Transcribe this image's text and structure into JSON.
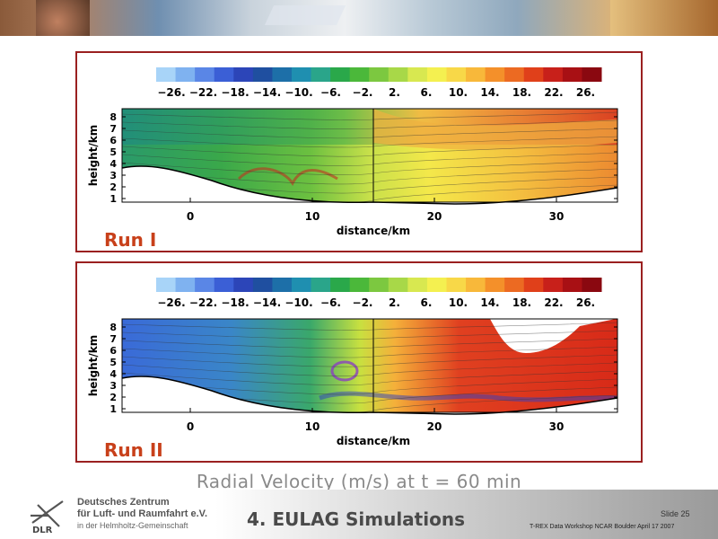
{
  "runs": [
    {
      "label": "Run I",
      "colorbar_ticks": [
        "−26.",
        "−22.",
        "−18.",
        "−14.",
        "−10.",
        "−6.",
        "−2.",
        "2.",
        "6.",
        "10.",
        "14.",
        "18.",
        "22.",
        "26."
      ],
      "xlabel": "distance/km",
      "ylabel": "height/km",
      "x_ticks": [
        "0",
        "10",
        "20",
        "30"
      ],
      "y_ticks": [
        "1",
        "2",
        "3",
        "4",
        "5",
        "6",
        "7",
        "8"
      ]
    },
    {
      "label": "Run II",
      "colorbar_ticks": [
        "−26.",
        "−22.",
        "−18.",
        "−14.",
        "−10.",
        "−6.",
        "−2.",
        "2.",
        "6.",
        "10.",
        "14.",
        "18.",
        "22.",
        "26."
      ],
      "xlabel": "distance/km",
      "ylabel": "height/km",
      "x_ticks": [
        "0",
        "10",
        "20",
        "30"
      ],
      "y_ticks": [
        "1",
        "2",
        "3",
        "4",
        "5",
        "6",
        "7",
        "8"
      ]
    }
  ],
  "colorbar_colors": [
    "#a8d4f8",
    "#7fb2f0",
    "#5a86e6",
    "#3b5fd6",
    "#2c45b8",
    "#1f4fa0",
    "#1d6fa8",
    "#1f8fb0",
    "#2aa58a",
    "#2aa84a",
    "#4bb83a",
    "#7cc840",
    "#a8d848",
    "#d8e850",
    "#f4f050",
    "#f8d848",
    "#f8b83a",
    "#f4902a",
    "#ec6a22",
    "#e0401a",
    "#c8201a",
    "#a81014",
    "#8a0810"
  ],
  "caption": "Radial Velocity (m/s) at t = 60 min",
  "footer": {
    "logo_text": "DLR",
    "org_line1": "Deutsches Zentrum",
    "org_line2": "für Luft- und Raumfahrt e.V.",
    "org_line3": "in der Helmholtz-Gemeinschaft",
    "section_title": "4. EULAG Simulations",
    "slide_number": "Slide 25",
    "workshop": "T-REX Data Workshop NCAR Boulder April 17 2007"
  }
}
